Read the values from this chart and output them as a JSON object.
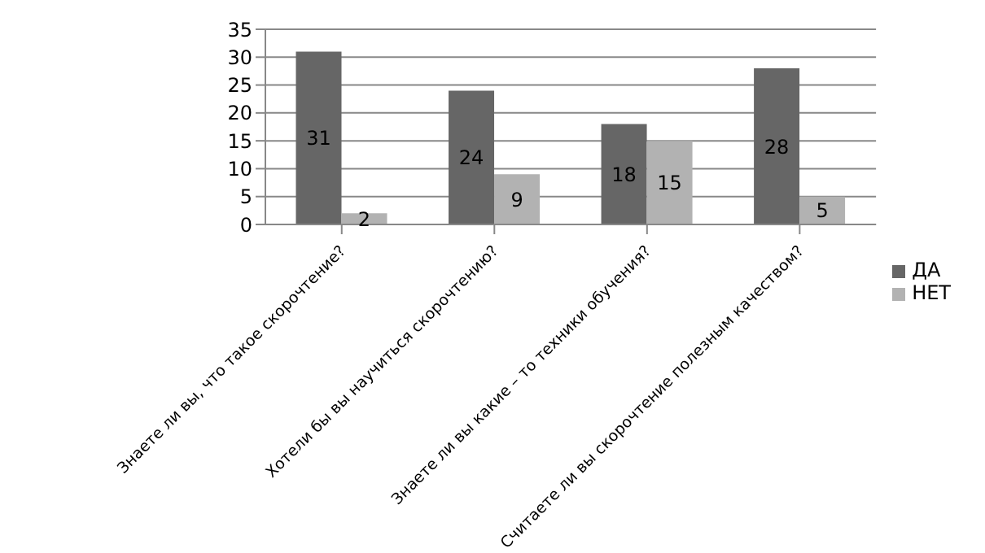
{
  "chart_data": {
    "type": "bar",
    "categories": [
      "Знаете ли вы, что такое скорочтение?",
      "Хотели бы вы научиться скорочтению?",
      "Знаете ли вы какие – то техники обучения?",
      "Считаете ли вы скорочтение полезным качеством?"
    ],
    "series": [
      {
        "name": "ДА",
        "color": "#666666",
        "values": [
          31,
          24,
          18,
          28
        ]
      },
      {
        "name": "НЕТ",
        "color": "#b2b2b2",
        "values": [
          2,
          9,
          15,
          5
        ]
      }
    ],
    "ylim": [
      0,
      35
    ],
    "yticks": [
      0,
      5,
      10,
      15,
      20,
      25,
      30,
      35
    ],
    "grid": "y",
    "legend": "right",
    "data_labels": true
  }
}
